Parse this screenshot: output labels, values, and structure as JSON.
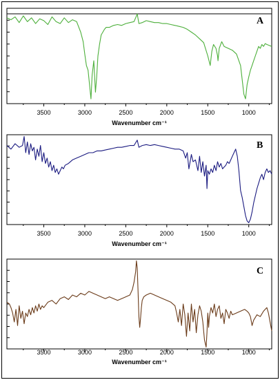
{
  "chart_data": [
    {
      "type": "line",
      "panel_label": "A",
      "xlabel": "Wavenumber cm⁻¹",
      "xlim": [
        3950,
        720
      ],
      "x_ticks": [
        3500,
        3000,
        2500,
        2000,
        1500,
        1000
      ],
      "ylim": [
        0,
        100
      ],
      "color": "#4caf3a",
      "series": [
        {
          "x": [
            3950,
            3900,
            3850,
            3800,
            3750,
            3700,
            3650,
            3600,
            3550,
            3500,
            3450,
            3400,
            3350,
            3300,
            3250,
            3200,
            3150,
            3100,
            3050,
            3020,
            3000,
            2980,
            2960,
            2940,
            2925,
            2910,
            2890,
            2870,
            2855,
            2840,
            2820,
            2800,
            2780,
            2760,
            2740,
            2700,
            2650,
            2600,
            2550,
            2500,
            2450,
            2400,
            2360,
            2340,
            2300,
            2250,
            2200,
            2150,
            2100,
            2050,
            2000,
            1950,
            1900,
            1850,
            1800,
            1750,
            1700,
            1650,
            1600,
            1550,
            1500,
            1470,
            1450,
            1430,
            1400,
            1380,
            1375,
            1360,
            1330,
            1300,
            1250,
            1200,
            1150,
            1100,
            1080,
            1060,
            1040,
            1030,
            1020,
            1000,
            980,
            960,
            940,
            920,
            900,
            880,
            860,
            840,
            820,
            800,
            780,
            750,
            720
          ],
          "values": [
            90,
            88,
            91,
            85,
            92,
            86,
            90,
            84,
            89,
            87,
            83,
            91,
            86,
            84,
            90,
            85,
            88,
            86,
            75,
            65,
            52,
            40,
            35,
            18,
            5,
            30,
            45,
            12,
            28,
            50,
            62,
            72,
            75,
            78,
            80,
            80,
            82,
            83,
            82,
            84,
            85,
            86,
            94,
            84,
            85,
            87,
            86,
            85,
            85,
            84,
            84,
            83,
            82,
            81,
            80,
            78,
            75,
            72,
            68,
            64,
            50,
            40,
            55,
            62,
            58,
            50,
            45,
            58,
            65,
            60,
            58,
            56,
            52,
            40,
            25,
            10,
            5,
            12,
            20,
            28,
            35,
            40,
            45,
            50,
            55,
            60,
            58,
            62,
            60,
            63,
            62,
            61,
            60
          ]
        }
      ]
    },
    {
      "type": "line",
      "panel_label": "B",
      "xlabel": "Wavenumber cm⁻¹",
      "xlim": [
        3950,
        720
      ],
      "x_ticks": [
        3500,
        3000,
        2500,
        2000,
        1500,
        1000
      ],
      "ylim": [
        0,
        100
      ],
      "color": "#1a1a80",
      "series": [
        {
          "x": [
            3950,
            3900,
            3850,
            3800,
            3760,
            3740,
            3720,
            3700,
            3680,
            3660,
            3640,
            3620,
            3600,
            3580,
            3560,
            3540,
            3520,
            3500,
            3480,
            3460,
            3440,
            3420,
            3400,
            3380,
            3360,
            3340,
            3320,
            3300,
            3280,
            3260,
            3240,
            3200,
            3150,
            3100,
            3050,
            3000,
            2950,
            2900,
            2850,
            2800,
            2750,
            2700,
            2650,
            2600,
            2550,
            2500,
            2450,
            2400,
            2360,
            2340,
            2300,
            2250,
            2200,
            2150,
            2100,
            2050,
            2000,
            1950,
            1900,
            1850,
            1800,
            1770,
            1750,
            1730,
            1700,
            1680,
            1650,
            1620,
            1600,
            1580,
            1560,
            1540,
            1520,
            1510,
            1500,
            1480,
            1460,
            1440,
            1420,
            1400,
            1380,
            1360,
            1340,
            1320,
            1300,
            1280,
            1260,
            1240,
            1220,
            1200,
            1180,
            1160,
            1140,
            1120,
            1100,
            1080,
            1060,
            1040,
            1020,
            1000,
            980,
            960,
            940,
            920,
            900,
            880,
            860,
            840,
            820,
            800,
            780,
            760,
            740,
            720
          ],
          "values": [
            88,
            84,
            90,
            86,
            88,
            98,
            80,
            92,
            78,
            90,
            82,
            86,
            72,
            84,
            76,
            88,
            70,
            80,
            68,
            74,
            64,
            70,
            60,
            66,
            58,
            62,
            56,
            60,
            64,
            62,
            66,
            68,
            72,
            74,
            76,
            78,
            80,
            80,
            82,
            82,
            83,
            84,
            85,
            86,
            86,
            87,
            88,
            88,
            94,
            86,
            88,
            89,
            88,
            89,
            88,
            87,
            86,
            85,
            84,
            84,
            82,
            74,
            80,
            62,
            78,
            70,
            72,
            60,
            76,
            58,
            70,
            54,
            66,
            40,
            60,
            56,
            62,
            58,
            66,
            60,
            70,
            64,
            68,
            62,
            64,
            66,
            70,
            68,
            72,
            76,
            80,
            84,
            76,
            60,
            38,
            30,
            20,
            10,
            4,
            2,
            6,
            14,
            24,
            32,
            40,
            46,
            52,
            56,
            50,
            58,
            62,
            58,
            60,
            56
          ]
        }
      ]
    },
    {
      "type": "line",
      "panel_label": "C",
      "xlabel": "Wavenumber cm⁻¹",
      "xlim": [
        3950,
        720
      ],
      "x_ticks": [
        3500,
        3000,
        2500,
        2000,
        1500,
        1000
      ],
      "ylim": [
        0,
        100
      ],
      "color": "#6a3a18",
      "series": [
        {
          "x": [
            3950,
            3920,
            3900,
            3880,
            3860,
            3840,
            3820,
            3800,
            3780,
            3760,
            3740,
            3720,
            3700,
            3680,
            3660,
            3640,
            3620,
            3600,
            3580,
            3560,
            3540,
            3520,
            3500,
            3450,
            3400,
            3350,
            3300,
            3250,
            3200,
            3150,
            3100,
            3050,
            3000,
            2950,
            2900,
            2850,
            2800,
            2750,
            2700,
            2650,
            2600,
            2550,
            2500,
            2450,
            2420,
            2400,
            2380,
            2370,
            2360,
            2350,
            2340,
            2330,
            2320,
            2310,
            2300,
            2280,
            2250,
            2200,
            2150,
            2100,
            2050,
            2000,
            1950,
            1900,
            1880,
            1860,
            1840,
            1820,
            1800,
            1780,
            1760,
            1740,
            1720,
            1700,
            1680,
            1660,
            1640,
            1620,
            1600,
            1580,
            1560,
            1540,
            1520,
            1510,
            1500,
            1490,
            1480,
            1460,
            1440,
            1420,
            1400,
            1380,
            1360,
            1340,
            1320,
            1300,
            1280,
            1260,
            1240,
            1220,
            1200,
            1150,
            1100,
            1050,
            1020,
            1000,
            980,
            960,
            940,
            900,
            860,
            820,
            800,
            780,
            760,
            740,
            720
          ],
          "values": [
            52,
            50,
            46,
            40,
            30,
            44,
            26,
            48,
            34,
            42,
            28,
            40,
            36,
            44,
            38,
            46,
            40,
            48,
            42,
            50,
            44,
            48,
            46,
            52,
            54,
            50,
            56,
            58,
            55,
            60,
            58,
            62,
            60,
            64,
            62,
            60,
            58,
            56,
            58,
            56,
            54,
            56,
            58,
            60,
            66,
            74,
            86,
            98,
            90,
            64,
            36,
            24,
            34,
            46,
            54,
            58,
            60,
            62,
            60,
            58,
            56,
            54,
            52,
            48,
            40,
            30,
            44,
            26,
            50,
            38,
            14,
            40,
            20,
            50,
            30,
            44,
            18,
            38,
            48,
            42,
            30,
            10,
            2,
            18,
            40,
            24,
            36,
            46,
            40,
            50,
            36,
            44,
            48,
            34,
            40,
            28,
            44,
            40,
            34,
            42,
            38,
            40,
            42,
            44,
            42,
            40,
            36,
            26,
            32,
            38,
            36,
            42,
            44,
            46,
            40,
            30,
            20
          ]
        }
      ]
    }
  ]
}
